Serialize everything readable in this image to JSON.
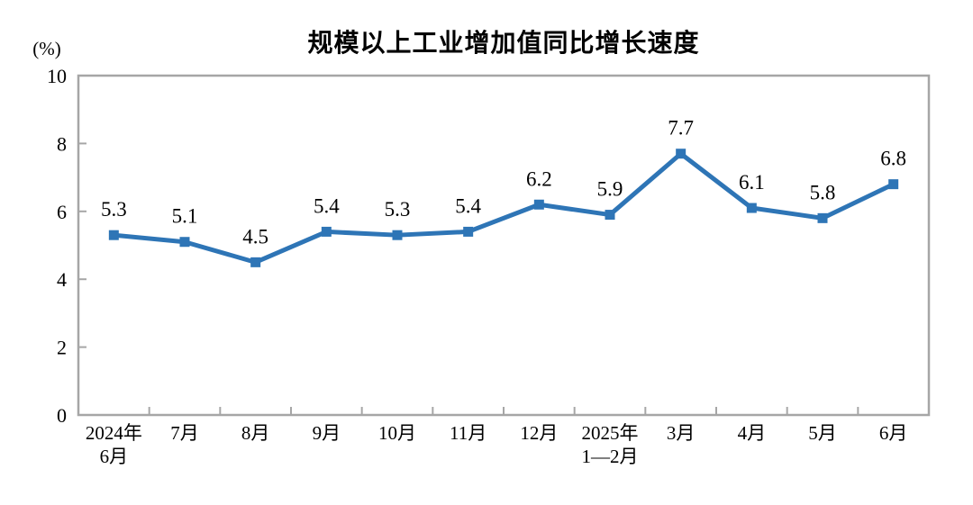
{
  "chart_data": {
    "type": "line",
    "title": "规模以上工业增加值同比增长速度",
    "unit": "(%)",
    "categories": [
      [
        "2024年",
        "6月"
      ],
      [
        "7月"
      ],
      [
        "8月"
      ],
      [
        "9月"
      ],
      [
        "10月"
      ],
      [
        "11月"
      ],
      [
        "12月"
      ],
      [
        "2025年",
        "1—2月"
      ],
      [
        "3月"
      ],
      [
        "4月"
      ],
      [
        "5月"
      ],
      [
        "6月"
      ]
    ],
    "values": [
      5.3,
      5.1,
      4.5,
      5.4,
      5.3,
      5.4,
      6.2,
      5.9,
      7.7,
      6.1,
      5.8,
      6.8
    ],
    "data_labels": [
      "5.3",
      "5.1",
      "4.5",
      "5.4",
      "5.3",
      "5.4",
      "6.2",
      "5.9",
      "7.7",
      "6.1",
      "5.8",
      "6.8"
    ],
    "xlabel": "",
    "ylabel": "(%)",
    "ylim": [
      0,
      10
    ],
    "yticks": [
      0,
      2,
      4,
      6,
      8,
      10
    ],
    "grid": false,
    "legend_position": "none",
    "marker": "square",
    "colors": {
      "line": "#2E75B6",
      "marker": "#2E75B6",
      "axis": "#A6A6A6",
      "text": "#000000",
      "background": "#FFFFFF"
    }
  }
}
